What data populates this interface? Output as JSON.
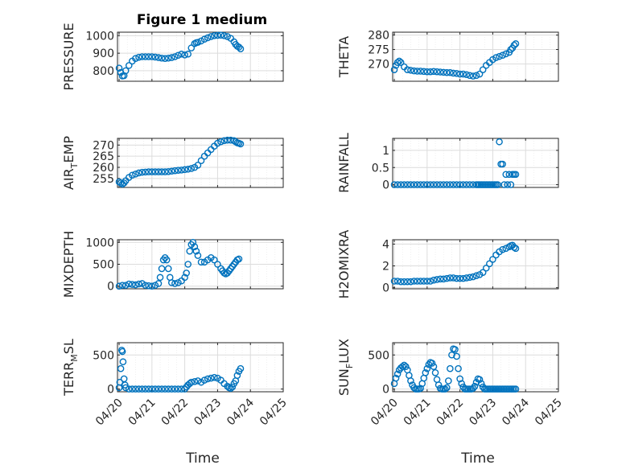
{
  "figure_title": "Figure 1 medium",
  "x_label": "Time",
  "x_tick_labels": [
    "04/20",
    "04/21",
    "04/22",
    "04/23",
    "04/24",
    "04/25"
  ],
  "marker_color": "#0072BD",
  "chart_data": [
    {
      "type": "scatter",
      "ylabel": "PRESSURE",
      "ylim": [
        740,
        1020
      ],
      "yticks": [
        800,
        900,
        1000
      ],
      "series": [
        {
          "x": [
            0,
            0.05,
            0.1,
            0.15,
            0.2,
            0.3,
            0.4,
            0.5,
            0.6,
            0.7,
            0.8,
            0.9,
            1.0,
            1.1,
            1.2,
            1.3,
            1.4,
            1.5,
            1.6,
            1.7,
            1.8,
            1.9,
            2.0,
            2.1,
            2.2,
            2.3,
            2.35,
            2.4,
            2.5,
            2.6,
            2.7,
            2.8,
            2.9,
            3.0,
            3.1,
            3.2,
            3.3,
            3.4,
            3.5,
            3.55,
            3.6,
            3.65,
            3.7
          ],
          "y": [
            815,
            790,
            770,
            772,
            800,
            830,
            855,
            870,
            877,
            880,
            880,
            880,
            880,
            878,
            875,
            872,
            870,
            872,
            875,
            880,
            888,
            895,
            890,
            895,
            930,
            955,
            960,
            962,
            970,
            980,
            988,
            995,
            1000,
            1002,
            1003,
            1000,
            995,
            985,
            965,
            950,
            940,
            935,
            925
          ]
        }
      ]
    },
    {
      "type": "scatter",
      "ylabel": "THETA",
      "ylim": [
        264,
        281
      ],
      "yticks": [
        270,
        275,
        280
      ],
      "series": [
        {
          "x": [
            0,
            0.05,
            0.1,
            0.15,
            0.2,
            0.3,
            0.4,
            0.5,
            0.6,
            0.7,
            0.8,
            0.9,
            1.0,
            1.1,
            1.2,
            1.3,
            1.4,
            1.5,
            1.6,
            1.7,
            1.8,
            1.9,
            2.0,
            2.1,
            2.2,
            2.3,
            2.4,
            2.5,
            2.6,
            2.7,
            2.8,
            2.9,
            3.0,
            3.1,
            3.2,
            3.3,
            3.4,
            3.5,
            3.55,
            3.6,
            3.65,
            3.7
          ],
          "y": [
            268,
            269.5,
            270.5,
            271,
            270.5,
            269,
            268,
            267.8,
            267.6,
            267.5,
            267.5,
            267.4,
            267.3,
            267.3,
            267.4,
            267.3,
            267.2,
            267.1,
            267,
            267,
            266.8,
            266.7,
            266.5,
            266.5,
            266.3,
            266,
            265.8,
            266,
            266.5,
            268,
            269.5,
            270.5,
            271.5,
            272.2,
            272.6,
            273,
            273.5,
            274,
            275,
            275.5,
            276.5,
            277
          ]
        }
      ]
    },
    {
      "type": "scatter",
      "ylabel": "AIR_T_EMP",
      "ylim": [
        251,
        273
      ],
      "yticks": [
        255,
        260,
        265,
        270
      ],
      "series": [
        {
          "x": [
            0,
            0.05,
            0.1,
            0.15,
            0.2,
            0.3,
            0.4,
            0.5,
            0.6,
            0.7,
            0.8,
            0.9,
            1.0,
            1.1,
            1.2,
            1.3,
            1.4,
            1.5,
            1.6,
            1.7,
            1.8,
            1.9,
            2.0,
            2.1,
            2.2,
            2.3,
            2.4,
            2.5,
            2.6,
            2.7,
            2.8,
            2.9,
            3.0,
            3.1,
            3.2,
            3.3,
            3.4,
            3.5,
            3.55,
            3.6,
            3.65,
            3.7
          ],
          "y": [
            253.5,
            253,
            252.5,
            253,
            254,
            255.5,
            256.5,
            257,
            257.5,
            257.8,
            257.9,
            258,
            258,
            258,
            258,
            258,
            258,
            258.1,
            258.3,
            258.5,
            258.7,
            258.8,
            259,
            259.2,
            259.5,
            260,
            261,
            263,
            265,
            266.5,
            268,
            269.5,
            270.8,
            271.5,
            272,
            272.2,
            272.2,
            272,
            271.5,
            271,
            270.8,
            270.5
          ]
        }
      ]
    },
    {
      "type": "scatter",
      "ylabel": "RAINFALL",
      "ylim": [
        -0.08,
        1.35
      ],
      "yticks": [
        0,
        0.5,
        1
      ],
      "series": [
        {
          "x": [
            0,
            0.1,
            0.2,
            0.3,
            0.4,
            0.5,
            0.6,
            0.7,
            0.8,
            0.9,
            1.0,
            1.1,
            1.2,
            1.3,
            1.4,
            1.5,
            1.6,
            1.7,
            1.8,
            1.9,
            2.0,
            2.1,
            2.2,
            2.3,
            2.4,
            2.5,
            2.55,
            2.6,
            2.65,
            2.7,
            2.75,
            2.8,
            2.85,
            2.9,
            2.95,
            3.0,
            3.05,
            3.1,
            3.15,
            3.2,
            3.25,
            3.3,
            3.35,
            3.4,
            3.45,
            3.5,
            3.55,
            3.6,
            3.65,
            3.7
          ],
          "y": [
            0,
            0,
            0,
            0,
            0,
            0,
            0,
            0,
            0,
            0,
            0,
            0,
            0,
            0,
            0,
            0,
            0,
            0,
            0,
            0,
            0,
            0,
            0,
            0,
            0,
            0,
            0,
            0,
            0,
            0,
            0,
            0,
            0,
            0,
            0,
            0,
            0,
            0,
            0,
            1.25,
            0.6,
            0.6,
            0,
            0.3,
            0,
            0.3,
            0,
            0.3,
            0.3,
            0.3
          ]
        }
      ]
    },
    {
      "type": "scatter",
      "ylabel": "MIXDEPTH",
      "ylim": [
        -60,
        1060
      ],
      "yticks": [
        0,
        500,
        1000
      ],
      "series": [
        {
          "x": [
            0,
            0.1,
            0.2,
            0.3,
            0.4,
            0.5,
            0.6,
            0.7,
            0.8,
            0.9,
            1.0,
            1.1,
            1.2,
            1.25,
            1.3,
            1.35,
            1.4,
            1.45,
            1.5,
            1.55,
            1.6,
            1.7,
            1.8,
            1.9,
            2.0,
            2.05,
            2.1,
            2.15,
            2.2,
            2.25,
            2.3,
            2.35,
            2.4,
            2.5,
            2.6,
            2.7,
            2.8,
            2.9,
            3.0,
            3.1,
            3.15,
            3.2,
            3.25,
            3.3,
            3.35,
            3.4,
            3.45,
            3.5,
            3.55,
            3.6,
            3.65
          ],
          "y": [
            0,
            20,
            20,
            50,
            40,
            30,
            50,
            60,
            20,
            10,
            0,
            20,
            60,
            200,
            400,
            600,
            650,
            600,
            400,
            200,
            80,
            60,
            80,
            120,
            200,
            300,
            500,
            800,
            950,
            1000,
            900,
            800,
            700,
            550,
            550,
            600,
            650,
            600,
            500,
            400,
            350,
            300,
            280,
            300,
            350,
            400,
            450,
            500,
            550,
            600,
            620
          ]
        }
      ]
    },
    {
      "type": "scatter",
      "ylabel": "H2OMIXRA",
      "ylim": [
        -0.1,
        4.4
      ],
      "yticks": [
        0,
        2,
        4
      ],
      "series": [
        {
          "x": [
            0,
            0.1,
            0.2,
            0.3,
            0.4,
            0.5,
            0.6,
            0.7,
            0.8,
            0.9,
            1.0,
            1.1,
            1.2,
            1.3,
            1.4,
            1.5,
            1.6,
            1.7,
            1.8,
            1.9,
            2.0,
            2.1,
            2.2,
            2.3,
            2.4,
            2.5,
            2.6,
            2.7,
            2.8,
            2.9,
            3.0,
            3.1,
            3.2,
            3.3,
            3.4,
            3.5,
            3.55,
            3.6,
            3.65,
            3.7
          ],
          "y": [
            0.6,
            0.6,
            0.55,
            0.55,
            0.55,
            0.55,
            0.6,
            0.6,
            0.6,
            0.6,
            0.6,
            0.6,
            0.7,
            0.75,
            0.8,
            0.8,
            0.85,
            0.9,
            0.9,
            0.85,
            0.85,
            0.85,
            0.9,
            0.95,
            1.0,
            1.1,
            1.2,
            1.4,
            1.8,
            2.2,
            2.6,
            3.0,
            3.3,
            3.5,
            3.6,
            3.75,
            3.85,
            3.9,
            3.7,
            3.6
          ]
        }
      ]
    },
    {
      "type": "scatter",
      "ylabel": "TERR_M_SL",
      "ylim": [
        -40,
        680
      ],
      "yticks": [
        0,
        500
      ],
      "series": [
        {
          "x": [
            0,
            0.02,
            0.05,
            0.08,
            0.1,
            0.12,
            0.15,
            0.18,
            0.2,
            0.3,
            0.4,
            0.5,
            0.6,
            0.7,
            0.8,
            0.9,
            1.0,
            1.1,
            1.2,
            1.3,
            1.4,
            1.5,
            1.6,
            1.7,
            1.8,
            1.9,
            2.0,
            2.05,
            2.1,
            2.15,
            2.2,
            2.3,
            2.4,
            2.5,
            2.6,
            2.7,
            2.8,
            2.9,
            3.0,
            3.1,
            3.2,
            3.3,
            3.35,
            3.4,
            3.45,
            3.5,
            3.55,
            3.6,
            3.65,
            3.7
          ],
          "y": [
            20,
            100,
            300,
            570,
            550,
            400,
            150,
            60,
            20,
            0,
            0,
            0,
            0,
            0,
            0,
            0,
            0,
            0,
            0,
            0,
            0,
            0,
            0,
            0,
            0,
            0,
            0,
            30,
            60,
            80,
            100,
            110,
            120,
            100,
            130,
            150,
            160,
            170,
            160,
            130,
            80,
            40,
            20,
            10,
            30,
            80,
            120,
            200,
            260,
            300
          ]
        }
      ]
    },
    {
      "type": "scatter",
      "ylabel": "SUN_F_LUX",
      "ylim": [
        -40,
        680
      ],
      "yticks": [
        0,
        500
      ],
      "series": [
        {
          "x": [
            0,
            0.05,
            0.1,
            0.15,
            0.2,
            0.25,
            0.3,
            0.35,
            0.4,
            0.45,
            0.5,
            0.55,
            0.6,
            0.65,
            0.7,
            0.75,
            0.8,
            0.85,
            0.9,
            0.95,
            1.0,
            1.05,
            1.1,
            1.15,
            1.2,
            1.25,
            1.3,
            1.35,
            1.4,
            1.45,
            1.5,
            1.55,
            1.6,
            1.65,
            1.7,
            1.75,
            1.8,
            1.85,
            1.9,
            1.95,
            2.0,
            2.05,
            2.1,
            2.15,
            2.2,
            2.25,
            2.3,
            2.35,
            2.4,
            2.45,
            2.5,
            2.55,
            2.6,
            2.65,
            2.7,
            2.75,
            2.8,
            2.85,
            2.9,
            2.95,
            3.0,
            3.05,
            3.1,
            3.15,
            3.2,
            3.25,
            3.3,
            3.35,
            3.4,
            3.45,
            3.5,
            3.55,
            3.6,
            3.65,
            3.7
          ],
          "y": [
            80,
            160,
            220,
            280,
            310,
            330,
            350,
            330,
            280,
            200,
            120,
            60,
            20,
            0,
            0,
            0,
            10,
            80,
            160,
            240,
            300,
            360,
            390,
            380,
            330,
            240,
            140,
            60,
            10,
            0,
            0,
            0,
            20,
            120,
            300,
            500,
            590,
            580,
            480,
            300,
            150,
            80,
            30,
            0,
            0,
            0,
            0,
            0,
            10,
            40,
            100,
            150,
            140,
            80,
            30,
            0,
            0,
            0,
            0,
            0,
            0,
            0,
            0,
            0,
            0,
            0,
            0,
            0,
            0,
            0,
            0,
            0,
            0,
            0,
            0
          ]
        }
      ]
    }
  ]
}
